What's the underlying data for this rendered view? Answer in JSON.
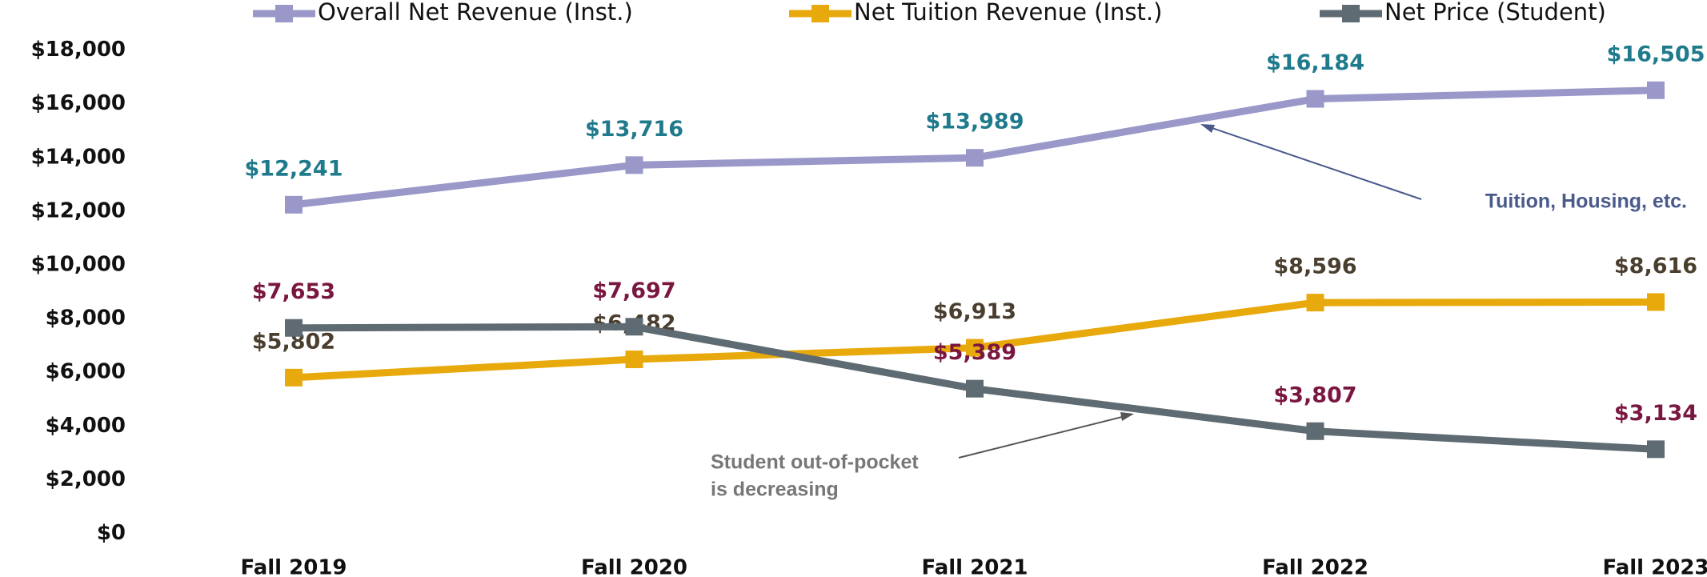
{
  "chart_data": {
    "type": "line",
    "categories": [
      "Fall 2019",
      "Fall 2020",
      "Fall 2021",
      "Fall 2022",
      "Fall 2023"
    ],
    "series": [
      {
        "name": "Overall Net Revenue (Inst.)",
        "color": "#9a98c9",
        "label_color": "#1f7a8c",
        "values": [
          12241,
          13716,
          13989,
          16184,
          16505
        ],
        "value_labels": [
          "$12,241",
          "$13,716",
          "$13,989",
          "$16,184",
          "$16,505"
        ]
      },
      {
        "name": "Net Tuition Revenue (Inst.)",
        "color": "#e8a90c",
        "label_color": "#4a3f2f",
        "values": [
          5802,
          6482,
          6913,
          8596,
          8616
        ],
        "value_labels": [
          "$5,802",
          "$6,482",
          "$6,913",
          "$8,596",
          "$8,616"
        ]
      },
      {
        "name": "Net Price (Student)",
        "color": "#5f6b73",
        "label_color": "#7a1740",
        "values": [
          7653,
          7697,
          5389,
          3807,
          3134
        ],
        "value_labels": [
          "$7,653",
          "$7,697",
          "$5,389",
          "$3,807",
          "$3,134"
        ]
      }
    ],
    "ylim": [
      0,
      18000
    ],
    "yticks": [
      {
        "value": 0,
        "label": "$0"
      },
      {
        "value": 2000,
        "label": "$2,000"
      },
      {
        "value": 4000,
        "label": "$4,000"
      },
      {
        "value": 6000,
        "label": "$6,000"
      },
      {
        "value": 8000,
        "label": "$8,000"
      },
      {
        "value": 10000,
        "label": "$10,000"
      },
      {
        "value": 12000,
        "label": "$12,000"
      },
      {
        "value": 14000,
        "label": "$14,000"
      },
      {
        "value": 16000,
        "label": "$16,000"
      },
      {
        "value": 18000,
        "label": "$18,000"
      }
    ],
    "grid": false,
    "legend": "top",
    "annotations": [
      {
        "lines": [
          "Tuition, Housing, etc."
        ],
        "color": "#4a5a8a"
      },
      {
        "lines": [
          "Student out-of-pocket",
          "is decreasing"
        ],
        "color": "#777777"
      }
    ]
  }
}
